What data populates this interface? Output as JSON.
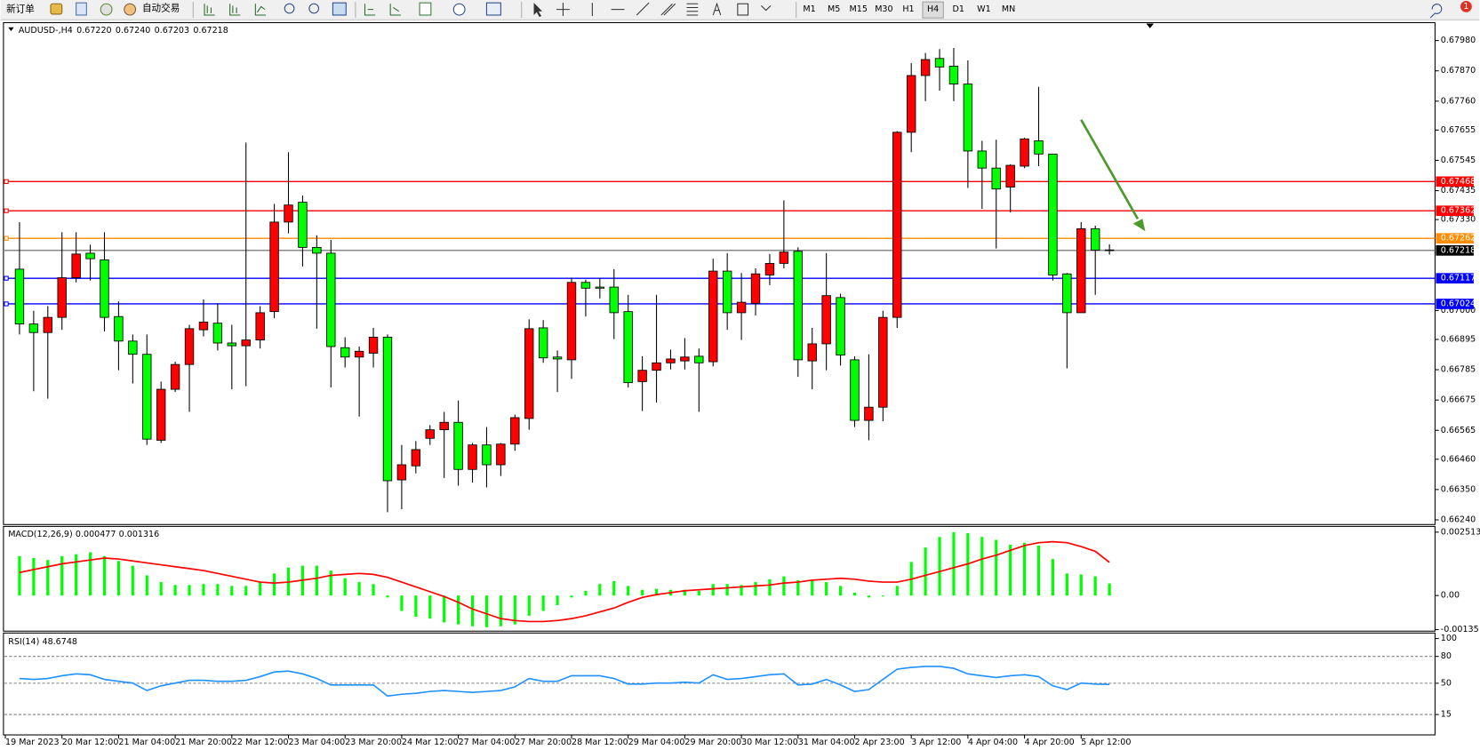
{
  "toolbar": {
    "new_order": "新订单",
    "auto_trading": "自动交易",
    "timeframes": [
      "M1",
      "M5",
      "M15",
      "M30",
      "H1",
      "H4",
      "D1",
      "W1",
      "MN"
    ],
    "notifications": 1
  },
  "chart_data": [
    {
      "type": "candlestick",
      "symbol": "AUDUSD-,H4",
      "ohlc_labels": [
        "0.67220",
        "0.67240",
        "0.67203",
        "0.67218"
      ],
      "up_color": "#ff0000",
      "down_color": "#00ff00",
      "ylim": [
        0.66223,
        0.68045
      ],
      "yticks": [
        {
          "value": 0.6798,
          "label": "0.67980"
        },
        {
          "value": 0.6787,
          "label": "0.67870"
        },
        {
          "value": 0.6776,
          "label": "0.67760"
        },
        0.67655,
        0.67545,
        0.67435,
        {
          "value": 0.6733,
          "label": "0.67330"
        },
        {
          "value": 0.67,
          "label": "0.67000"
        },
        0.66895,
        0.66785,
        0.66675,
        0.66565,
        {
          "value": 0.6646,
          "label": "0.66460"
        },
        {
          "value": 0.6635,
          "label": "0.66350"
        },
        {
          "value": 0.6624,
          "label": "0.66240"
        }
      ],
      "levels": [
        {
          "value": 0.67468,
          "color": "#ff0000"
        },
        {
          "value": 0.67362,
          "color": "#ff0000"
        },
        {
          "value": 0.67262,
          "color": "#ff8c00"
        },
        {
          "value": 0.67117,
          "color": "#0000ff"
        },
        {
          "value": 0.67024,
          "color": "#0000ff"
        }
      ],
      "time_labels": [
        "19 Mar 2023",
        "20 Mar 12:00",
        "21 Mar 04:00",
        "21 Mar 20:00",
        "22 Mar 12:00",
        "23 Mar 04:00",
        "23 Mar 20:00",
        "24 Mar 12:00",
        "27 Mar 04:00",
        "27 Mar 20:00",
        "28 Mar 12:00",
        "29 Mar 04:00",
        "29 Mar 20:00",
        "30 Mar 12:00",
        "31 Mar 04:00",
        "2 Apr 23:00",
        "3 Apr 12:00",
        "4 Apr 04:00",
        "4 Apr 20:00",
        "5 Apr 12:00"
      ],
      "candles": [
        [
          0.6715,
          0.67321,
          0.66913,
          0.66951
        ],
        [
          0.66951,
          0.66999,
          0.66707,
          0.6692
        ],
        [
          0.6692,
          0.67016,
          0.6668,
          0.66975
        ],
        [
          0.66975,
          0.67284,
          0.6693,
          0.67119
        ],
        [
          0.67119,
          0.67284,
          0.67102,
          0.67205
        ],
        [
          0.67208,
          0.67239,
          0.67109,
          0.67188
        ],
        [
          0.67184,
          0.67284,
          0.66924,
          0.66975
        ],
        [
          0.66978,
          0.67033,
          0.66783,
          0.66889
        ],
        [
          0.66889,
          0.66913,
          0.66735,
          0.66841
        ],
        [
          0.66841,
          0.66913,
          0.66512,
          0.66533
        ],
        [
          0.66529,
          0.66742,
          0.66519,
          0.66714
        ],
        [
          0.66714,
          0.66814,
          0.66704,
          0.66804
        ],
        [
          0.66804,
          0.66948,
          0.66632,
          0.66934
        ],
        [
          0.6693,
          0.6704,
          0.66906,
          0.66958
        ],
        [
          0.66954,
          0.67026,
          0.66855,
          0.66882
        ],
        [
          0.66882,
          0.66948,
          0.66714,
          0.66872
        ],
        [
          0.66872,
          0.6761,
          0.66725,
          0.66893
        ],
        [
          0.66893,
          0.67016,
          0.66862,
          0.66992
        ],
        [
          0.66996,
          0.67387,
          0.66972,
          0.67321
        ],
        [
          0.67321,
          0.67575,
          0.6728,
          0.67383
        ],
        [
          0.67393,
          0.67417,
          0.6716,
          0.67229
        ],
        [
          0.67229,
          0.67273,
          0.66934,
          0.67208
        ],
        [
          0.67208,
          0.67256,
          0.66721,
          0.66869
        ],
        [
          0.66865,
          0.66903,
          0.66793,
          0.66831
        ],
        [
          0.66831,
          0.66869,
          0.66615,
          0.66852
        ],
        [
          0.66845,
          0.66937,
          0.66793,
          0.66903
        ],
        [
          0.66903,
          0.66913,
          0.66268,
          0.66382
        ],
        [
          0.66385,
          0.66512,
          0.66279,
          0.6644
        ],
        [
          0.66436,
          0.66526,
          0.66409,
          0.66495
        ],
        [
          0.66536,
          0.66584,
          0.66512,
          0.66567
        ],
        [
          0.66567,
          0.66632,
          0.66392,
          0.66594
        ],
        [
          0.66594,
          0.66673,
          0.66364,
          0.66423
        ],
        [
          0.66423,
          0.66519,
          0.66375,
          0.66512
        ],
        [
          0.66512,
          0.66577,
          0.66358,
          0.6644
        ],
        [
          0.6644,
          0.66519,
          0.66399,
          0.66515
        ],
        [
          0.66515,
          0.66622,
          0.66491,
          0.66611
        ],
        [
          0.66608,
          0.66968,
          0.66567,
          0.66934
        ],
        [
          0.66937,
          0.66965,
          0.6681,
          0.66828
        ],
        [
          0.66831,
          0.66855,
          0.66704,
          0.66824
        ],
        [
          0.66821,
          0.67119,
          0.66752,
          0.67102
        ],
        [
          0.67102,
          0.67112,
          0.66978,
          0.67081
        ],
        [
          0.67085,
          0.67119,
          0.67044,
          0.67081
        ],
        [
          0.67085,
          0.6715,
          0.66896,
          0.66992
        ],
        [
          0.66996,
          0.67057,
          0.66721,
          0.66738
        ],
        [
          0.66742,
          0.66834,
          0.66635,
          0.66783
        ],
        [
          0.66783,
          0.67057,
          0.66666,
          0.6681
        ],
        [
          0.6681,
          0.66858,
          0.66786,
          0.66824
        ],
        [
          0.66817,
          0.669,
          0.66786,
          0.66831
        ],
        [
          0.66834,
          0.66862,
          0.66632,
          0.6681
        ],
        [
          0.66814,
          0.67188,
          0.66797,
          0.67143
        ],
        [
          0.67143,
          0.67208,
          0.6693,
          0.66992
        ],
        [
          0.66992,
          0.67136,
          0.66893,
          0.6703
        ],
        [
          0.67026,
          0.67153,
          0.66982,
          0.67133
        ],
        [
          0.67129,
          0.67205,
          0.67092,
          0.67171
        ],
        [
          0.67171,
          0.674,
          0.67153,
          0.67212
        ],
        [
          0.67215,
          0.67229,
          0.66759,
          0.66821
        ],
        [
          0.66817,
          0.66937,
          0.66714,
          0.66879
        ],
        [
          0.66879,
          0.67208,
          0.66783,
          0.67054
        ],
        [
          0.67047,
          0.67061,
          0.668,
          0.66838
        ],
        [
          0.66821,
          0.66834,
          0.66577,
          0.66601
        ],
        [
          0.66601,
          0.66841,
          0.66529,
          0.66649
        ],
        [
          0.66649,
          0.66999,
          0.66598,
          0.66975
        ],
        [
          0.66975,
          0.67651,
          0.66937,
          0.67647
        ],
        [
          0.67647,
          0.67898,
          0.67575,
          0.67853
        ],
        [
          0.67853,
          0.67935,
          0.6776,
          0.67911
        ],
        [
          0.67915,
          0.67949,
          0.67798,
          0.67884
        ],
        [
          0.67887,
          0.67953,
          0.6776,
          0.67822
        ],
        [
          0.67822,
          0.67908,
          0.67445,
          0.67579
        ],
        [
          0.67579,
          0.67616,
          0.67369,
          0.67517
        ],
        [
          0.67517,
          0.6762,
          0.67225,
          0.67441
        ],
        [
          0.67448,
          0.67531,
          0.67356,
          0.67527
        ],
        [
          0.67524,
          0.67627,
          0.67517,
          0.67623
        ],
        [
          0.67616,
          0.67812,
          0.67524,
          0.67568
        ],
        [
          0.67568,
          0.67568,
          0.67109,
          0.67129
        ],
        [
          0.67133,
          0.67136,
          0.6679,
          0.66992
        ],
        [
          0.66992,
          0.67321,
          0.66992,
          0.67297
        ],
        [
          0.67297,
          0.67308,
          0.67057,
          0.67219
        ],
        [
          0.6722,
          0.6724,
          0.67203,
          0.67218
        ]
      ]
    },
    {
      "type": "macd",
      "title": "MACD(12,26,9)",
      "histogram_color": "#00ff00",
      "signal_color": "#ff0000",
      "ylim": [
        -0.00141,
        0.00274
      ],
      "yticks": [
        0.002513,
        {
          "value": 0,
          "label": "0.00"
        },
        -0.00135
      ],
      "histogram": [
        0.001561,
        0.001485,
        0.001409,
        0.001561,
        0.001637,
        0.001713,
        0.001561,
        0.001371,
        0.00118,
        0.0008,
        0.000533,
        0.000419,
        0.000419,
        0.000457,
        0.000457,
        0.000381,
        0.000381,
        0.000533,
        0.000876,
        0.001104,
        0.00118,
        0.00118,
        0.00099,
        0.000685,
        0.000533,
        0.000457,
        -7.6e-05,
        -0.000609,
        -0.000838,
        -0.000914,
        -0.001066,
        -0.001142,
        -0.001218,
        -0.001256,
        -0.001218,
        -0.001142,
        -0.0008,
        -0.000609,
        -0.000381,
        -7.6e-05,
        0.00019,
        0.000457,
        0.000571,
        0.000381,
        0.000228,
        0.000267,
        0.000228,
        0.000228,
        0.00019,
        0.000457,
        0.000457,
        0.000419,
        0.000533,
        0.000647,
        0.000761,
        0.000609,
        0.000609,
        0.000533,
        0.000381,
        0.000114,
        -7.6e-05,
        -3.8e-05,
        0.000381,
        0.001333,
        0.001904,
        0.002322,
        0.002513,
        0.002475,
        0.002322,
        0.002208,
        0.002018,
        0.002094,
        0.00198,
        0.001447,
        0.000876,
        0.000838,
        0.000761,
        0.000477
      ],
      "signal": [
        0.000914,
        0.001029,
        0.001143,
        0.001257,
        0.001334,
        0.00141,
        0.001486,
        0.001448,
        0.001372,
        0.001295,
        0.001219,
        0.001143,
        0.001067,
        0.000991,
        0.000876,
        0.000762,
        0.000648,
        0.000533,
        0.000495,
        0.000533,
        0.00061,
        0.000686,
        0.0008,
        0.000838,
        0.000876,
        0.000838,
        0.000724,
        0.000533,
        0.000343,
        0.000152,
        -3.8e-05,
        -0.000267,
        -0.000533,
        -0.000724,
        -0.000914,
        -0.000991,
        -0.001029,
        -0.001029,
        -0.000991,
        -0.000914,
        -0.0008,
        -0.000648,
        -0.000495,
        -0.000267,
        -7.6e-05,
        3.8e-05,
        0.000114,
        0.000191,
        0.000229,
        0.000267,
        0.000305,
        0.000343,
        0.000381,
        0.000419,
        0.000495,
        0.000533,
        0.00061,
        0.000648,
        0.000686,
        0.000648,
        0.000572,
        0.000533,
        0.000533,
        0.000648,
        0.0008,
        0.000953,
        0.001105,
        0.001257,
        0.001448,
        0.0016,
        0.001791,
        0.001981,
        0.002096,
        0.002134,
        0.002096,
        0.001943,
        0.001753,
        0.001316
      ]
    },
    {
      "type": "line",
      "title": "RSI(14)",
      "color": "#1e90ff",
      "ylim": [
        -7.8,
        106.2
      ],
      "yticks": [
        100,
        80,
        50,
        15
      ],
      "levels": [
        80,
        50,
        15
      ],
      "values": [
        55.3,
        54.3,
        55.3,
        58.4,
        60.5,
        59.5,
        54.3,
        52.2,
        50.2,
        41.9,
        47.1,
        50.2,
        53.3,
        53.3,
        52.2,
        52.2,
        53.3,
        57.4,
        62.6,
        63.6,
        60.5,
        55.3,
        48.1,
        48.1,
        48.1,
        48.1,
        35.7,
        37.7,
        38.8,
        40.8,
        41.9,
        40.8,
        39.8,
        40.8,
        41.9,
        46.0,
        55.3,
        52.2,
        52.2,
        58.4,
        58.4,
        58.4,
        55.3,
        49.1,
        49.1,
        50.2,
        50.2,
        51.2,
        50.2,
        59.5,
        54.3,
        55.3,
        57.4,
        59.5,
        60.5,
        48.1,
        49.1,
        54.3,
        48.1,
        40.8,
        42.9,
        54.3,
        65.7,
        67.7,
        68.8,
        68.8,
        66.7,
        60.5,
        58.4,
        56.4,
        58.4,
        59.5,
        57.4,
        47.1,
        42.9,
        50.2,
        49.1,
        48.6748
      ]
    }
  ]
}
